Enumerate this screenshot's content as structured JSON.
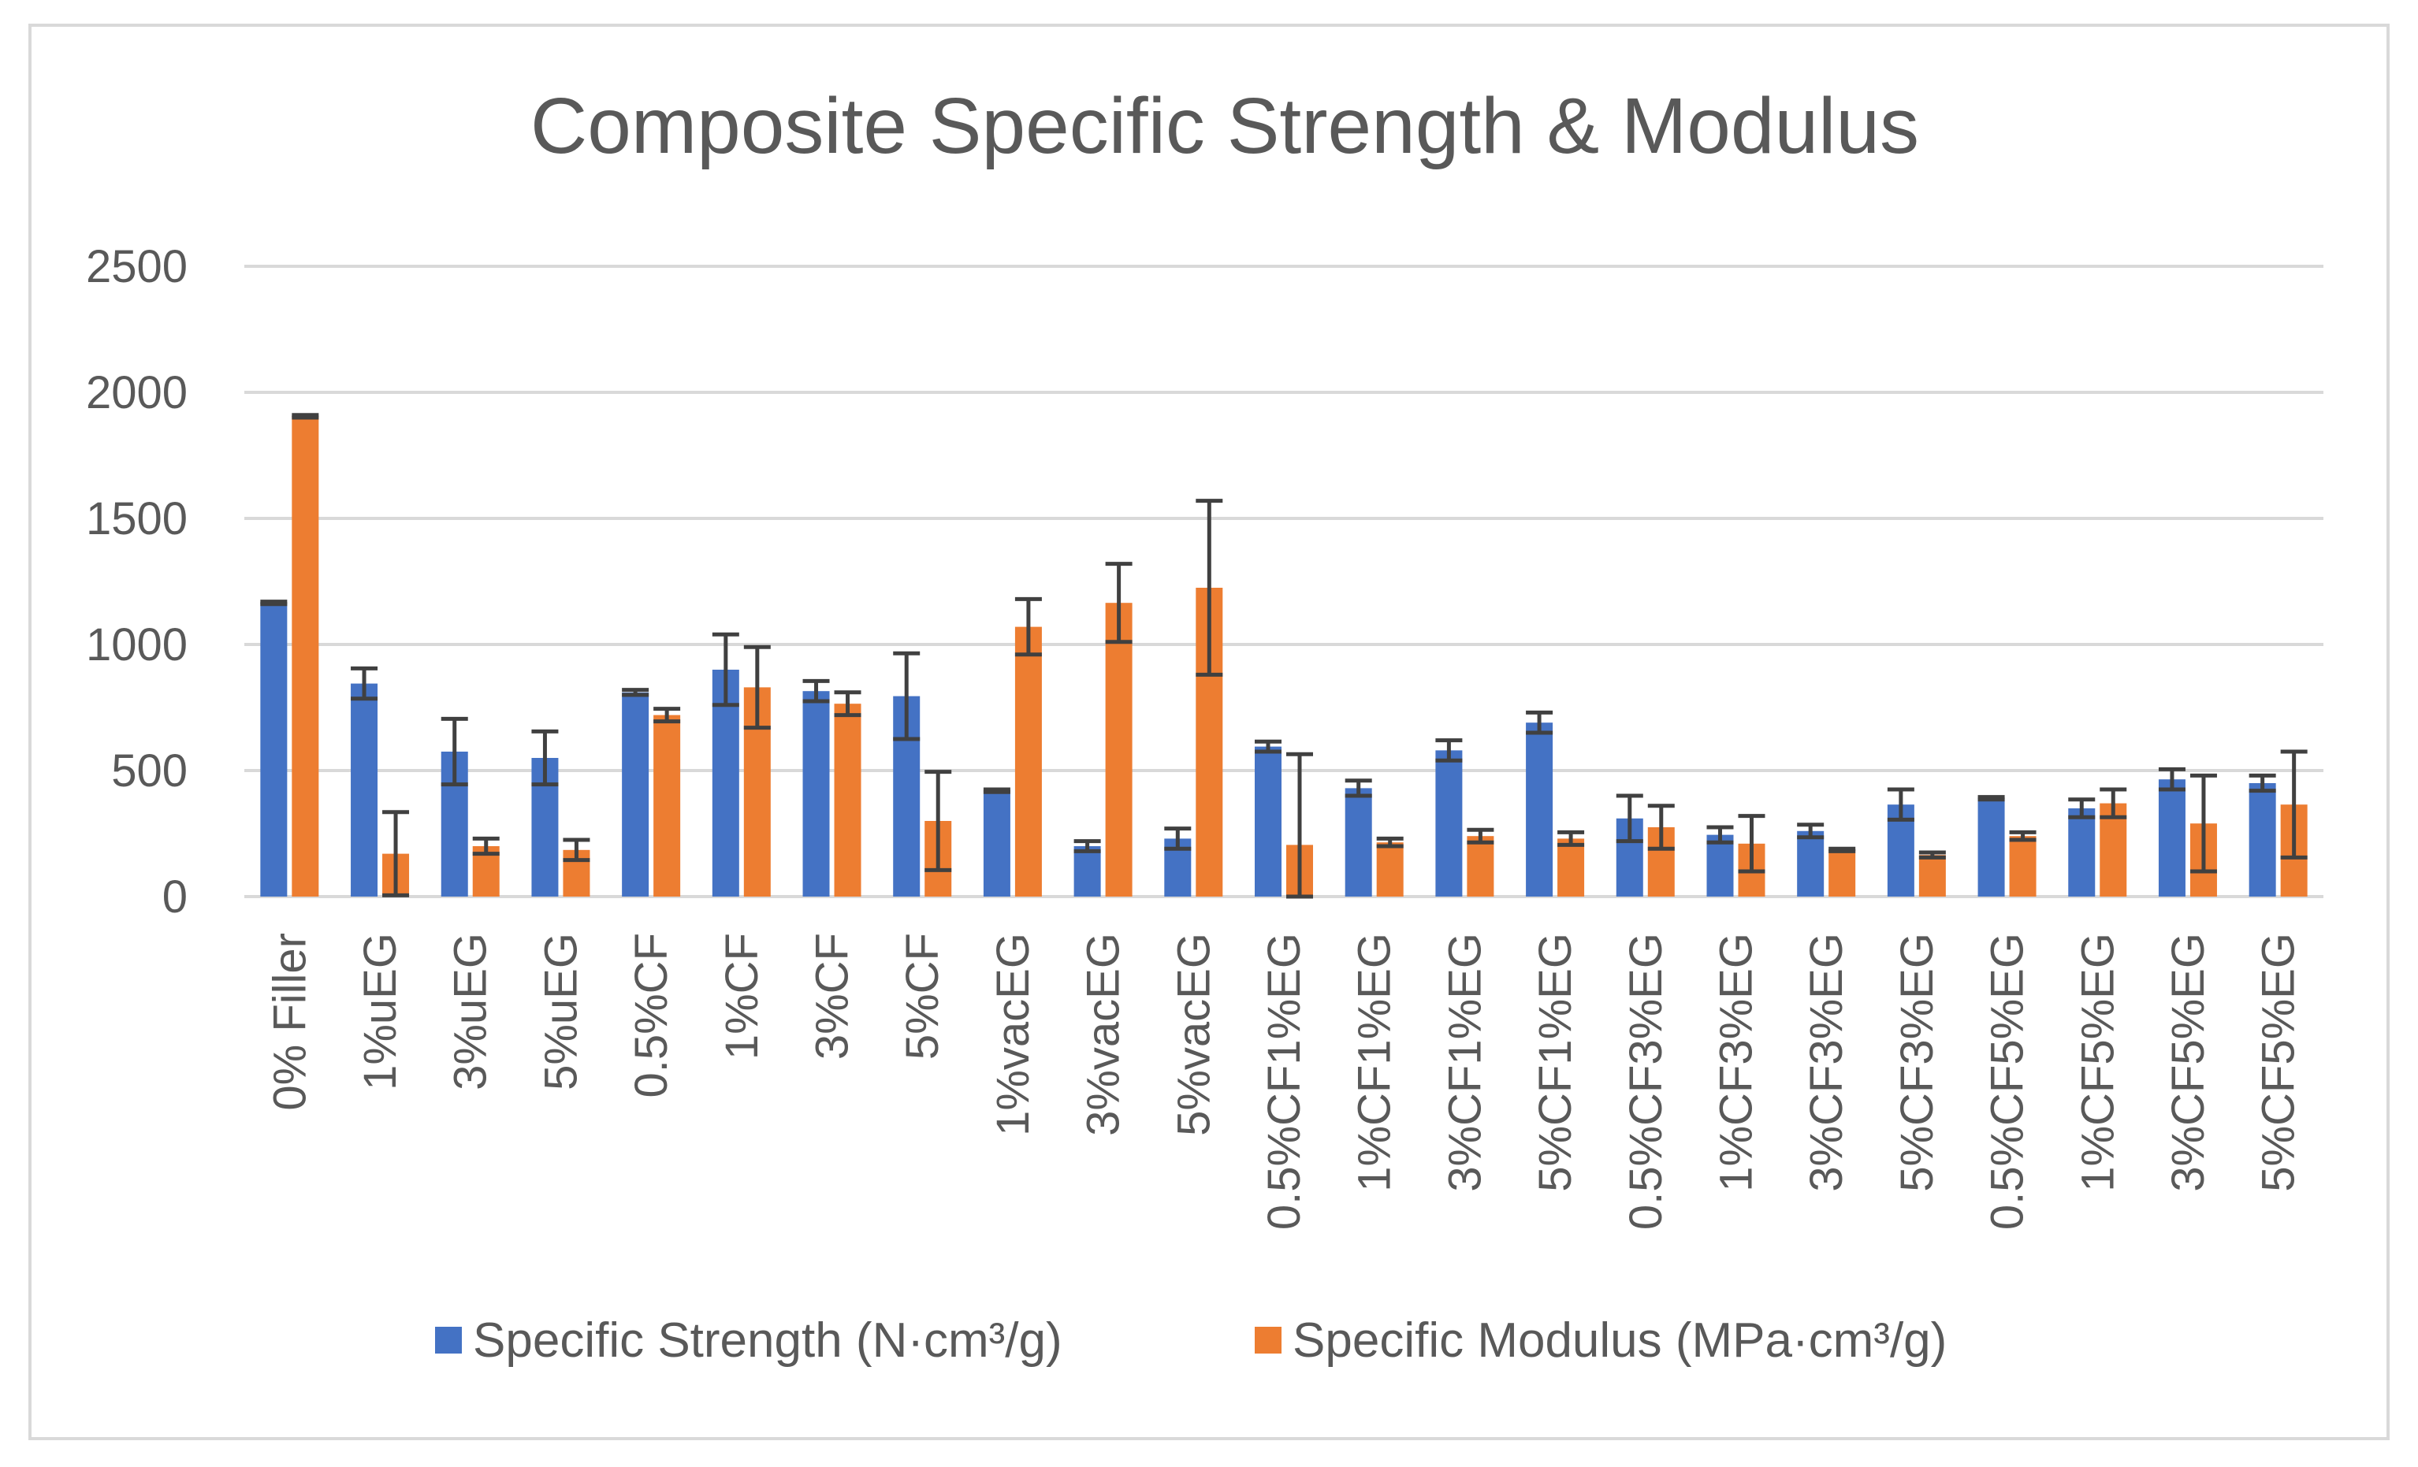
{
  "chart_data": {
    "type": "bar",
    "title": "Composite Specific Strength & Modulus",
    "xlabel": "",
    "ylabel": "",
    "ylim": [
      0,
      2500
    ],
    "yticks": [
      0,
      500,
      1000,
      1500,
      2000,
      2500
    ],
    "grid": true,
    "legend_position": "bottom",
    "categories": [
      "0% Filler",
      "1%uEG",
      "3%uEG",
      "5%uEG",
      "0.5%CF",
      "1%CF",
      "3%CF",
      "5%CF",
      "1%vacEG",
      "3%vacEG",
      "5%vacEG",
      "0.5%CF1%EG",
      "1%CF1%EG",
      "3%CF1%EG",
      "5%CF1%EG",
      "0.5%CF3%EG",
      "1%CF3%EG",
      "3%CF3%EG",
      "5%CF3%EG",
      "0.5%CF5%EG",
      "1%CF5%EG",
      "3%CF5%EG",
      "5%CF5%EG"
    ],
    "series": [
      {
        "name": "Specific Strength (N·cm³/g)",
        "color": "#4472c4",
        "values": [
          1165,
          845,
          575,
          550,
          810,
          900,
          815,
          795,
          420,
          200,
          230,
          595,
          430,
          580,
          690,
          310,
          245,
          260,
          365,
          390,
          350,
          465,
          450
        ],
        "errors": [
          5,
          60,
          130,
          105,
          10,
          140,
          40,
          170,
          5,
          20,
          40,
          20,
          30,
          40,
          40,
          90,
          30,
          25,
          60,
          5,
          35,
          40,
          30
        ]
      },
      {
        "name": "Specific Modulus (MPa·cm³/g)",
        "color": "#ed7d31",
        "values": [
          1905,
          170,
          200,
          185,
          720,
          830,
          765,
          300,
          1070,
          1165,
          1225,
          205,
          215,
          240,
          230,
          275,
          210,
          185,
          165,
          240,
          370,
          290,
          365
        ],
        "errors": [
          5,
          165,
          30,
          40,
          25,
          160,
          45,
          195,
          110,
          155,
          345,
          360,
          15,
          25,
          25,
          85,
          110,
          5,
          10,
          15,
          55,
          190,
          210
        ]
      }
    ]
  }
}
